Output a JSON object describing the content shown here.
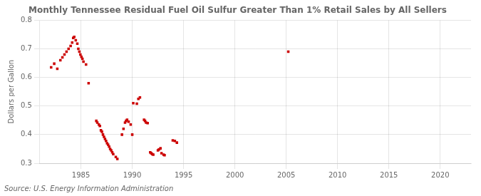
{
  "chart_data": {
    "type": "scatter",
    "title": "Monthly Tennessee Residual Fuel Oil Sulfur Greater Than 1% Retail Sales by All Sellers",
    "ylabel": "Dollars per Gallon",
    "source": "Source: U.S. Energy Information Administration",
    "color": "#cc0000",
    "marker": "square",
    "grid": true,
    "xlim": [
      1981,
      2023
    ],
    "ylim": [
      0.3,
      0.8
    ],
    "xticks": [
      1985,
      1990,
      1995,
      2000,
      2005,
      2010,
      2015,
      2020
    ],
    "yticks": [
      0.3,
      0.4,
      0.5,
      0.6,
      0.7,
      0.8
    ],
    "x": [
      1982.1,
      1982.4,
      1982.7,
      1983.0,
      1983.2,
      1983.4,
      1983.6,
      1983.8,
      1984.0,
      1984.15,
      1984.25,
      1984.35,
      1984.5,
      1984.65,
      1984.75,
      1984.85,
      1984.95,
      1985.05,
      1985.15,
      1985.25,
      1985.5,
      1985.75,
      1986.5,
      1986.6,
      1986.75,
      1986.85,
      1986.95,
      1987.05,
      1987.15,
      1987.25,
      1987.35,
      1987.45,
      1987.55,
      1987.65,
      1987.75,
      1987.85,
      1987.95,
      1988.05,
      1988.15,
      1988.4,
      1988.55,
      1989.0,
      1989.15,
      1989.3,
      1989.4,
      1989.5,
      1989.65,
      1989.85,
      1990.0,
      1990.1,
      1990.45,
      1990.6,
      1990.75,
      1991.15,
      1991.25,
      1991.35,
      1991.5,
      1991.75,
      1991.85,
      1991.95,
      1992.05,
      1992.5,
      1992.6,
      1992.75,
      1992.85,
      1993.05,
      1993.15,
      1993.95,
      1994.15,
      1994.35,
      2005.2
    ],
    "values": [
      0.635,
      0.648,
      0.63,
      0.66,
      0.67,
      0.68,
      0.69,
      0.7,
      0.71,
      0.722,
      0.738,
      0.742,
      0.73,
      0.718,
      0.7,
      0.69,
      0.68,
      0.672,
      0.665,
      0.655,
      0.645,
      0.58,
      0.448,
      0.442,
      0.435,
      0.43,
      0.415,
      0.41,
      0.4,
      0.392,
      0.385,
      0.378,
      0.37,
      0.365,
      0.358,
      0.35,
      0.345,
      0.338,
      0.332,
      0.322,
      0.315,
      0.4,
      0.42,
      0.442,
      0.448,
      0.452,
      0.445,
      0.435,
      0.4,
      0.51,
      0.508,
      0.525,
      0.53,
      0.452,
      0.448,
      0.442,
      0.44,
      0.338,
      0.335,
      0.332,
      0.33,
      0.345,
      0.348,
      0.352,
      0.335,
      0.33,
      0.328,
      0.38,
      0.378,
      0.372,
      0.69
    ]
  }
}
